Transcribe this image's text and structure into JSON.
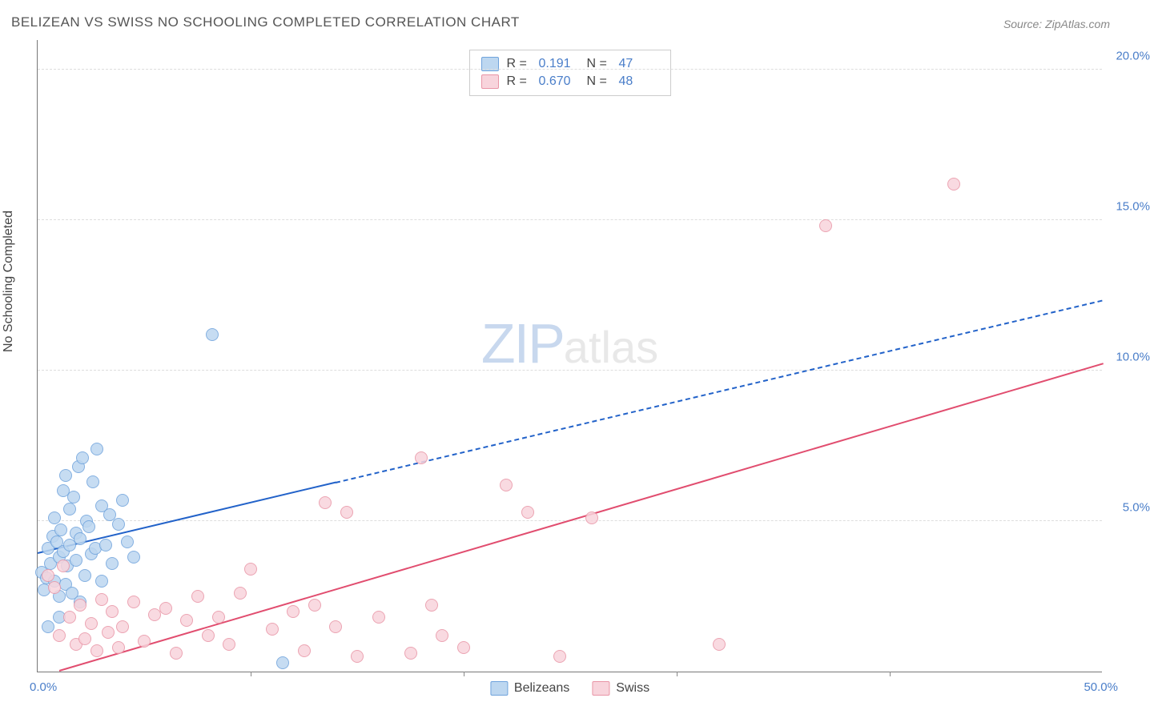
{
  "title": "BELIZEAN VS SWISS NO SCHOOLING COMPLETED CORRELATION CHART",
  "source": "Source: ZipAtlas.com",
  "y_axis_label": "No Schooling Completed",
  "watermark": {
    "part1": "ZIP",
    "part2": "atlas"
  },
  "chart": {
    "type": "scatter",
    "xlim": [
      0,
      50
    ],
    "ylim": [
      0,
      21
    ],
    "x_origin_label": "0.0%",
    "x_end_label": "50.0%",
    "x_ticks": [
      10,
      20,
      30,
      40
    ],
    "y_gridlines": [
      5,
      10,
      15,
      20
    ],
    "y_tick_labels": [
      "5.0%",
      "10.0%",
      "15.0%",
      "20.0%"
    ],
    "background_color": "#ffffff",
    "grid_color": "#dddddd",
    "axis_color": "#777777",
    "marker_radius": 8,
    "marker_stroke_width": 1.5,
    "series": [
      {
        "name": "Belizeans",
        "fill_color": "#bdd7f0",
        "stroke_color": "#6fa3dc",
        "line_color": "#2262c9",
        "r_value": "0.191",
        "n_value": "47",
        "trend": {
          "x1": 0,
          "y1": 3.9,
          "x2": 50,
          "y2": 12.3,
          "solid_until_x": 14
        },
        "points": [
          [
            0.2,
            3.3
          ],
          [
            0.3,
            2.7
          ],
          [
            0.4,
            3.1
          ],
          [
            0.5,
            4.1
          ],
          [
            0.6,
            3.6
          ],
          [
            0.7,
            4.5
          ],
          [
            0.8,
            3.0
          ],
          [
            0.8,
            5.1
          ],
          [
            0.9,
            4.3
          ],
          [
            1.0,
            2.5
          ],
          [
            1.0,
            3.8
          ],
          [
            1.1,
            4.7
          ],
          [
            1.2,
            6.0
          ],
          [
            1.2,
            4.0
          ],
          [
            1.3,
            2.9
          ],
          [
            1.3,
            6.5
          ],
          [
            1.4,
            3.5
          ],
          [
            1.5,
            5.4
          ],
          [
            1.5,
            4.2
          ],
          [
            1.6,
            2.6
          ],
          [
            1.7,
            5.8
          ],
          [
            1.8,
            4.6
          ],
          [
            1.8,
            3.7
          ],
          [
            1.9,
            6.8
          ],
          [
            2.0,
            4.4
          ],
          [
            2.1,
            7.1
          ],
          [
            2.2,
            3.2
          ],
          [
            2.3,
            5.0
          ],
          [
            2.4,
            4.8
          ],
          [
            2.5,
            3.9
          ],
          [
            2.6,
            6.3
          ],
          [
            2.7,
            4.1
          ],
          [
            2.8,
            7.4
          ],
          [
            3.0,
            5.5
          ],
          [
            3.2,
            4.2
          ],
          [
            3.4,
            5.2
          ],
          [
            3.5,
            3.6
          ],
          [
            3.8,
            4.9
          ],
          [
            4.0,
            5.7
          ],
          [
            4.2,
            4.3
          ],
          [
            4.5,
            3.8
          ],
          [
            3.0,
            3.0
          ],
          [
            2.0,
            2.3
          ],
          [
            1.0,
            1.8
          ],
          [
            0.5,
            1.5
          ],
          [
            8.2,
            11.2
          ],
          [
            11.5,
            0.3
          ]
        ]
      },
      {
        "name": "Swiss",
        "fill_color": "#f8d4dc",
        "stroke_color": "#e995a6",
        "line_color": "#e14d6f",
        "r_value": "0.670",
        "n_value": "48",
        "trend": {
          "x1": 1,
          "y1": 0.0,
          "x2": 50,
          "y2": 10.2,
          "solid_until_x": 50
        },
        "points": [
          [
            0.5,
            3.2
          ],
          [
            0.8,
            2.8
          ],
          [
            1.0,
            1.2
          ],
          [
            1.2,
            3.5
          ],
          [
            1.5,
            1.8
          ],
          [
            1.8,
            0.9
          ],
          [
            2.0,
            2.2
          ],
          [
            2.2,
            1.1
          ],
          [
            2.5,
            1.6
          ],
          [
            2.8,
            0.7
          ],
          [
            3.0,
            2.4
          ],
          [
            3.3,
            1.3
          ],
          [
            3.5,
            2.0
          ],
          [
            3.8,
            0.8
          ],
          [
            4.0,
            1.5
          ],
          [
            4.5,
            2.3
          ],
          [
            5.0,
            1.0
          ],
          [
            5.5,
            1.9
          ],
          [
            6.0,
            2.1
          ],
          [
            6.5,
            0.6
          ],
          [
            7.0,
            1.7
          ],
          [
            7.5,
            2.5
          ],
          [
            8.0,
            1.2
          ],
          [
            8.5,
            1.8
          ],
          [
            9.0,
            0.9
          ],
          [
            9.5,
            2.6
          ],
          [
            10.0,
            3.4
          ],
          [
            11.0,
            1.4
          ],
          [
            12.0,
            2.0
          ],
          [
            12.5,
            0.7
          ],
          [
            13.0,
            2.2
          ],
          [
            13.5,
            5.6
          ],
          [
            14.0,
            1.5
          ],
          [
            14.5,
            5.3
          ],
          [
            15.0,
            0.5
          ],
          [
            16.0,
            1.8
          ],
          [
            17.5,
            0.6
          ],
          [
            18.0,
            7.1
          ],
          [
            19.0,
            1.2
          ],
          [
            20.0,
            0.8
          ],
          [
            22.0,
            6.2
          ],
          [
            23.0,
            5.3
          ],
          [
            24.5,
            0.5
          ],
          [
            26.0,
            5.1
          ],
          [
            32.0,
            0.9
          ],
          [
            37.0,
            14.8
          ],
          [
            43.0,
            16.2
          ],
          [
            18.5,
            2.2
          ]
        ]
      }
    ]
  },
  "legend_top": {
    "r_label": "R =",
    "n_label": "N ="
  },
  "legend_bottom": [
    {
      "label": "Belizeans",
      "fill": "#bdd7f0",
      "stroke": "#6fa3dc"
    },
    {
      "label": "Swiss",
      "fill": "#f8d4dc",
      "stroke": "#e995a6"
    }
  ]
}
